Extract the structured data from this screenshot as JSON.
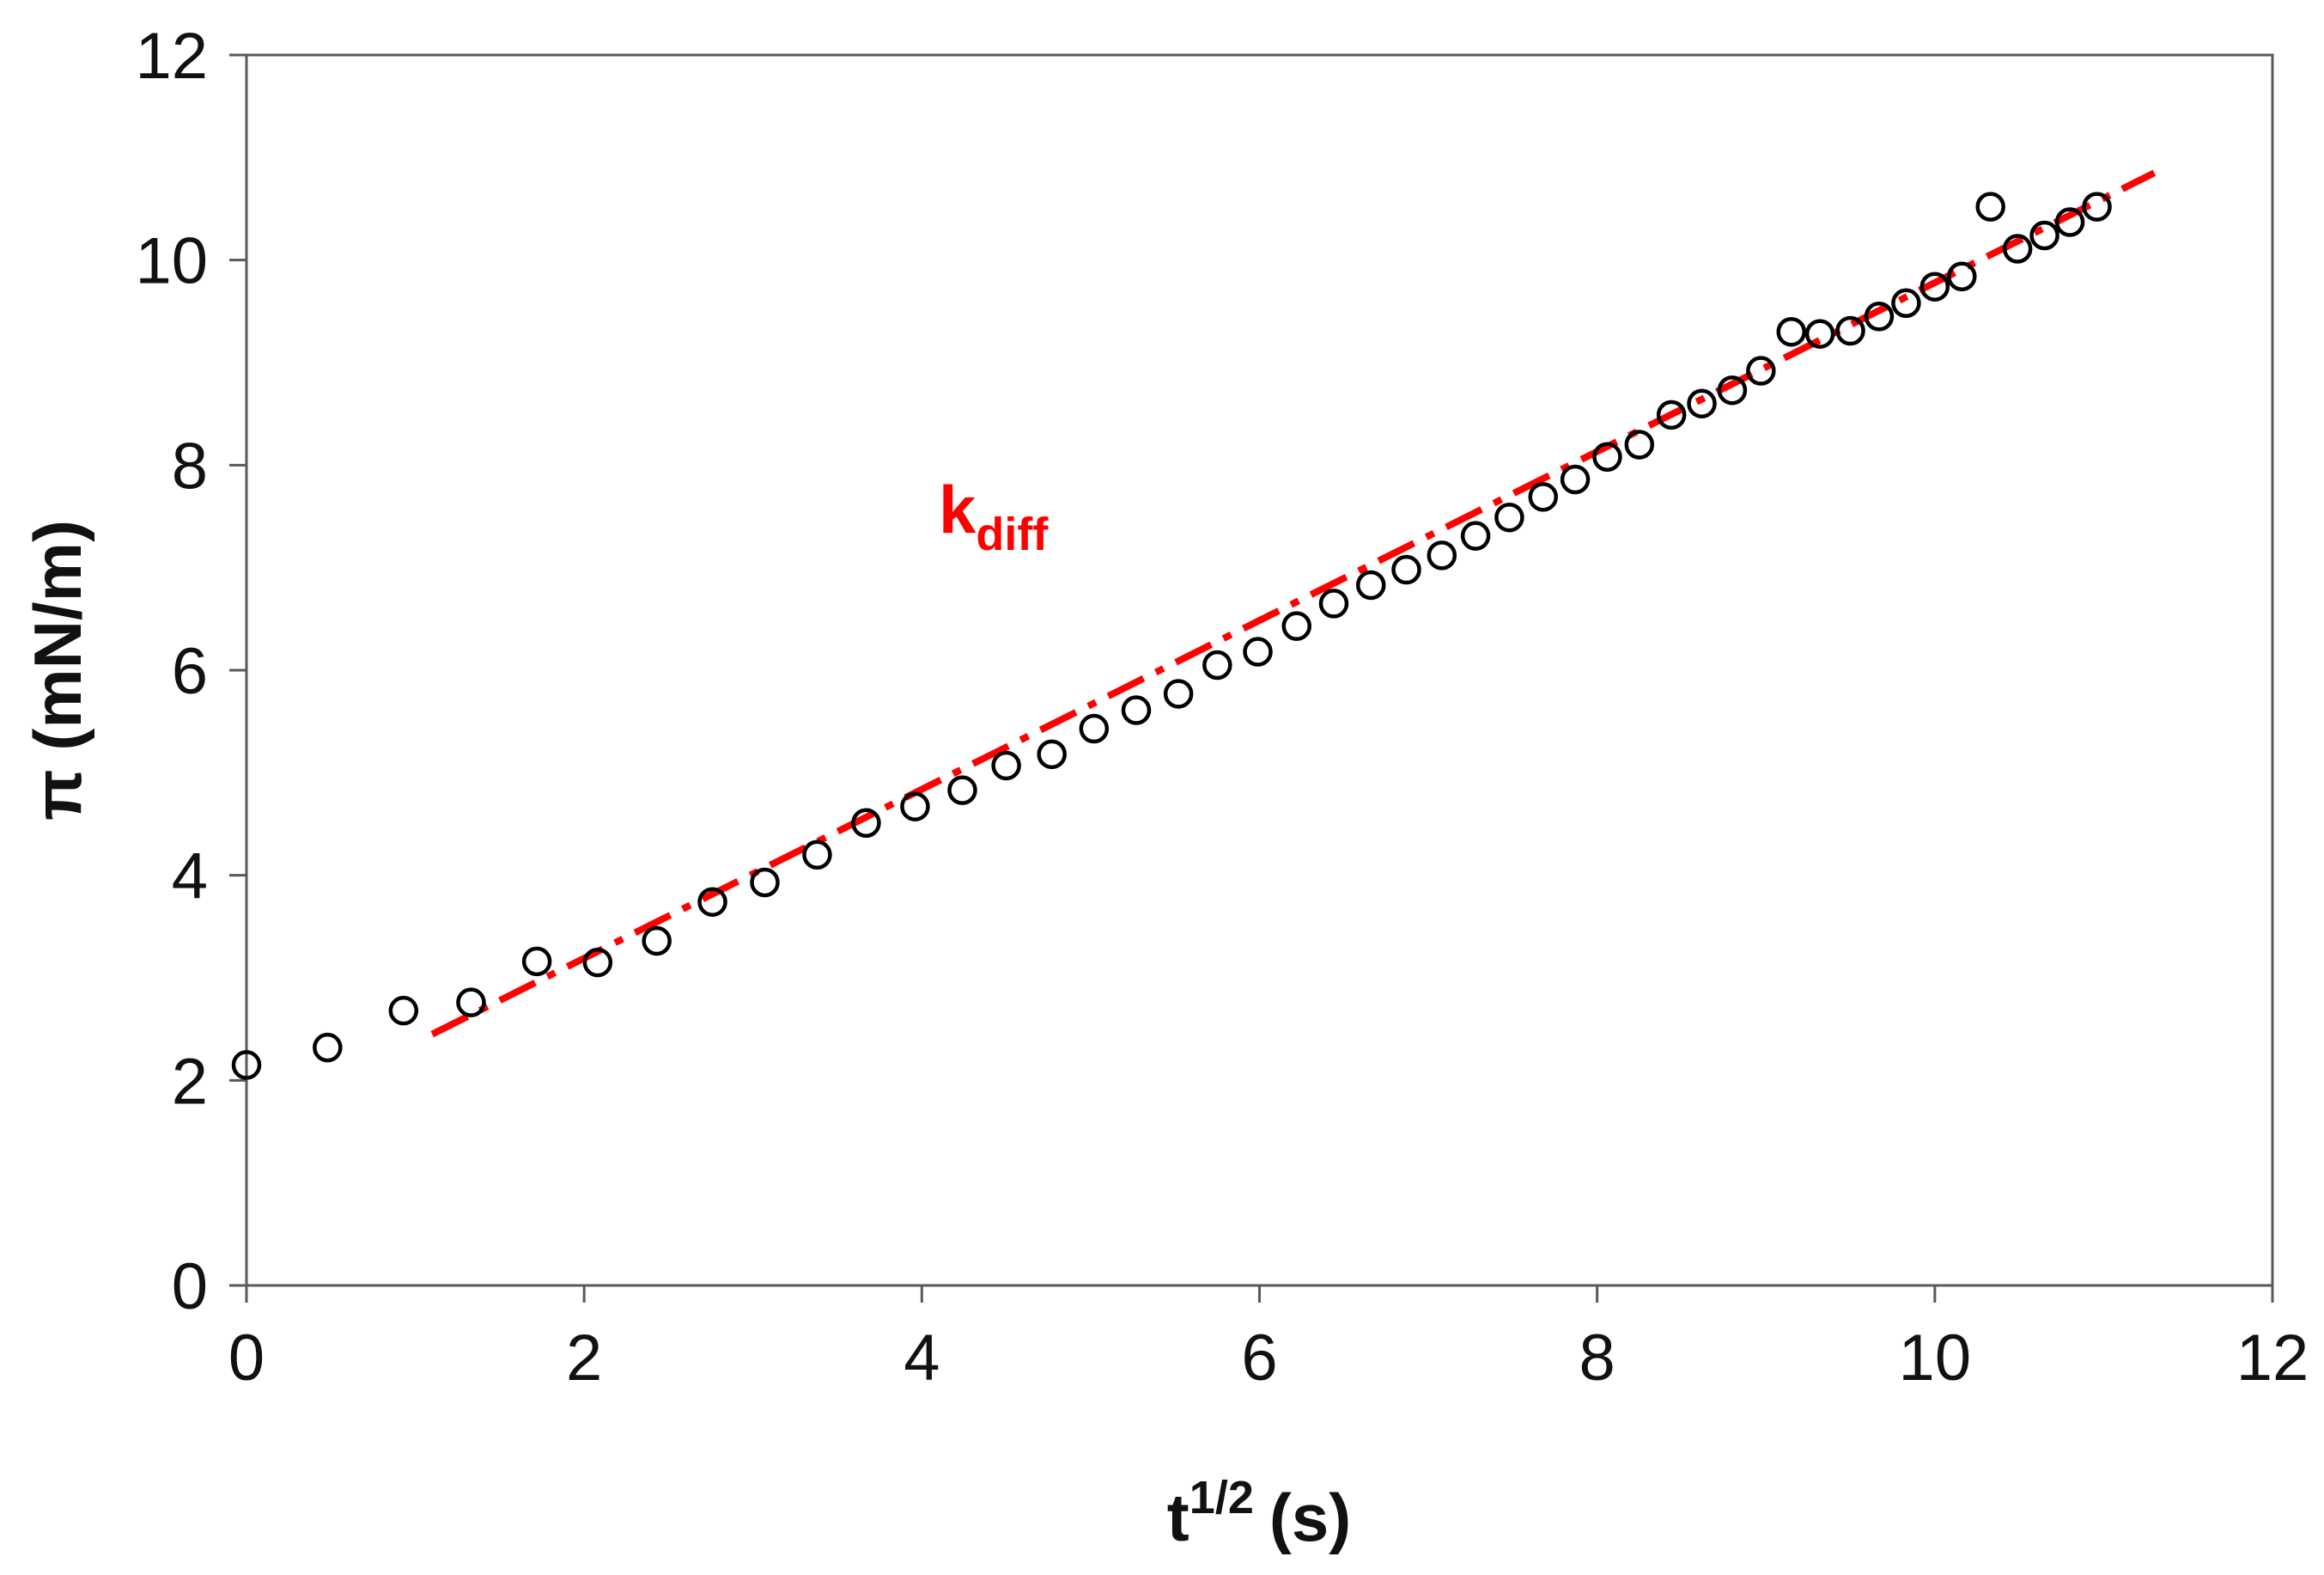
{
  "chart_data": {
    "type": "scatter",
    "title": "",
    "xlabel": "t",
    "xlabel_sup": "1/2",
    "xlabel_unit": "(s)",
    "ylabel": "π (mN/m)",
    "xlim": [
      0,
      12
    ],
    "ylim": [
      0,
      12
    ],
    "xticks": [
      "0",
      "2",
      "4",
      "6",
      "8",
      "10",
      "12"
    ],
    "yticks": [
      "0",
      "2",
      "4",
      "6",
      "8",
      "10",
      "12"
    ],
    "grid": false,
    "series": [
      {
        "marker": "open-circle",
        "color": "#000000",
        "points": [
          [
            0.0,
            2.15
          ],
          [
            0.48,
            2.32
          ],
          [
            0.93,
            2.68
          ],
          [
            1.33,
            2.76
          ],
          [
            1.72,
            3.16
          ],
          [
            2.08,
            3.15
          ],
          [
            2.43,
            3.36
          ],
          [
            2.76,
            3.74
          ],
          [
            3.07,
            3.93
          ],
          [
            3.38,
            4.2
          ],
          [
            3.67,
            4.51
          ],
          [
            3.96,
            4.67
          ],
          [
            4.24,
            4.83
          ],
          [
            4.5,
            5.07
          ],
          [
            4.77,
            5.18
          ],
          [
            5.02,
            5.43
          ],
          [
            5.27,
            5.61
          ],
          [
            5.52,
            5.77
          ],
          [
            5.75,
            6.05
          ],
          [
            5.99,
            6.18
          ],
          [
            6.22,
            6.43
          ],
          [
            6.44,
            6.65
          ],
          [
            6.66,
            6.83
          ],
          [
            6.87,
            6.98
          ],
          [
            7.08,
            7.12
          ],
          [
            7.28,
            7.31
          ],
          [
            7.48,
            7.49
          ],
          [
            7.68,
            7.69
          ],
          [
            7.87,
            7.86
          ],
          [
            8.06,
            8.08
          ],
          [
            8.25,
            8.2
          ],
          [
            8.44,
            8.49
          ],
          [
            8.62,
            8.6
          ],
          [
            8.8,
            8.73
          ],
          [
            8.97,
            8.92
          ],
          [
            9.15,
            9.3
          ],
          [
            9.32,
            9.28
          ],
          [
            9.5,
            9.31
          ],
          [
            9.67,
            9.45
          ],
          [
            9.83,
            9.58
          ],
          [
            10.0,
            9.74
          ],
          [
            10.16,
            9.84
          ],
          [
            10.33,
            10.52
          ],
          [
            10.49,
            10.11
          ],
          [
            10.65,
            10.24
          ],
          [
            10.8,
            10.37
          ],
          [
            10.96,
            10.52
          ]
        ]
      }
    ],
    "fit_line": {
      "name": "k",
      "name_subscript": "diff",
      "style": "dash-dot",
      "color": "#ff0000",
      "x": [
        1.1,
        11.3
      ],
      "y": [
        2.45,
        10.85
      ]
    }
  }
}
